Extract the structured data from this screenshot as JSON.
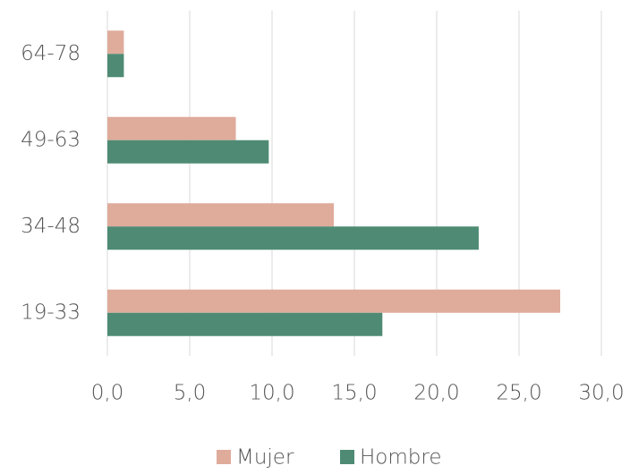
{
  "chart_data": {
    "type": "bar",
    "orientation": "horizontal",
    "categories": [
      "64-78",
      "49-63",
      "34-48",
      "19-33"
    ],
    "series": [
      {
        "name": "Mujer",
        "color": "#dfab9b",
        "values": [
          1.0,
          7.8,
          13.75,
          27.5
        ]
      },
      {
        "name": "Hombre",
        "color": "#4f8b74",
        "values": [
          1.0,
          9.8,
          22.55,
          16.7
        ]
      }
    ],
    "xlim": [
      0,
      30
    ],
    "xticks": [
      {
        "value": 0,
        "label": "0,0"
      },
      {
        "value": 5,
        "label": "5,0"
      },
      {
        "value": 10,
        "label": "10,0"
      },
      {
        "value": 15,
        "label": "15,0"
      },
      {
        "value": 20,
        "label": "20,0"
      },
      {
        "value": 25,
        "label": "25,0"
      },
      {
        "value": 30,
        "label": "30,0"
      }
    ],
    "grid": true,
    "legend": "bottom"
  }
}
